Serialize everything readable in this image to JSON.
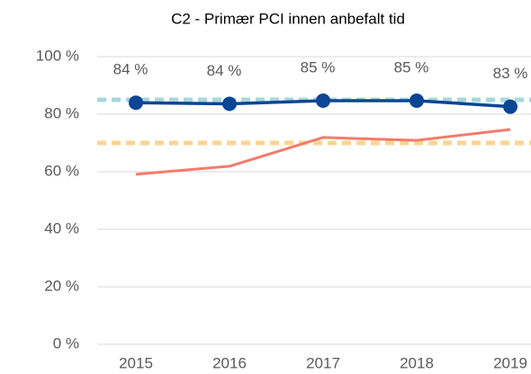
{
  "chart_data": {
    "type": "line",
    "title": "C2 - Primær PCI innen anbefalt tid",
    "categories": [
      "2015",
      "2016",
      "2017",
      "2018",
      "2019"
    ],
    "series": [
      {
        "color": "#0b4595",
        "values": [
          84,
          83.6,
          84.7,
          84.7,
          82.6
        ],
        "value_labels": [
          "84 %",
          "84 %",
          "85 %",
          "85 %",
          "83 %"
        ],
        "markers": true
      },
      {
        "color": "#f47b6b",
        "values": [
          59.1,
          61.9,
          71.9,
          70.9,
          74.7
        ]
      }
    ],
    "reference_lines": [
      {
        "value": 85,
        "color": "#a6d8dc"
      },
      {
        "value": 70,
        "color": "#fbd58f"
      }
    ],
    "ylim": [
      0,
      100
    ],
    "yticks": [
      {
        "value": 0,
        "label": "0 %"
      },
      {
        "value": 20,
        "label": "20 %"
      },
      {
        "value": 40,
        "label": "40 %"
      },
      {
        "value": 60,
        "label": "60 %"
      },
      {
        "value": 80,
        "label": "80 %"
      },
      {
        "value": 100,
        "label": "100 %"
      }
    ],
    "grid": true
  }
}
